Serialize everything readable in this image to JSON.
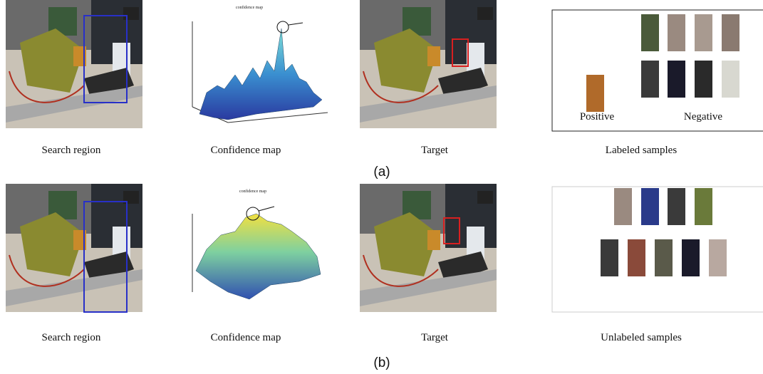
{
  "rows": [
    {
      "label": "(a)",
      "captions": [
        "Search region",
        "Confidence map",
        "Target",
        "Labeled samples"
      ],
      "plot_title": "confidence map",
      "sample_labels": [
        "Positive",
        "Negative"
      ]
    },
    {
      "label": "(b)",
      "captions": [
        "Search region",
        "Confidence map",
        "Target",
        "Unlabeled samples"
      ],
      "plot_title": "confidence map"
    }
  ]
}
